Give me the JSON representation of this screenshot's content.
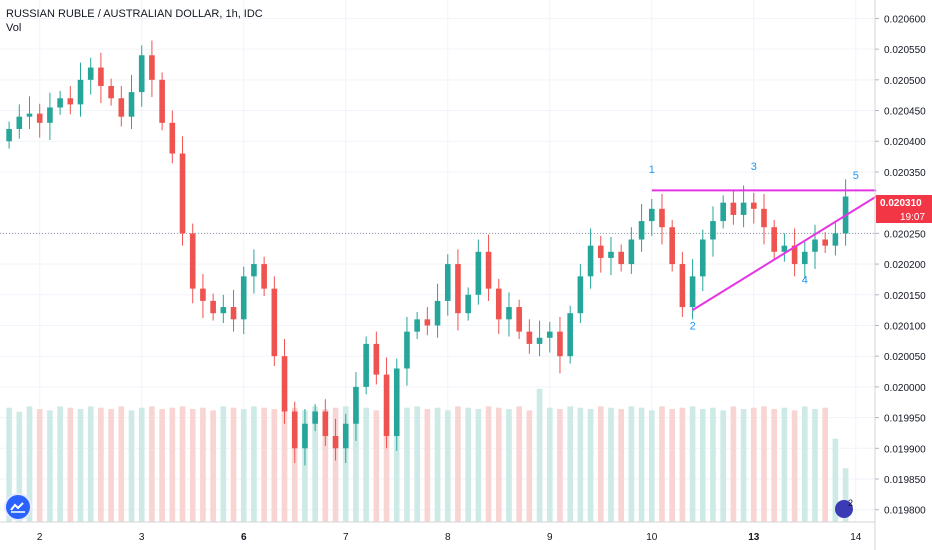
{
  "header": {
    "title": "RUSSIAN RUBLE / AUSTRALIAN DOLLAR, 1h, IDC",
    "indicator": "Vol"
  },
  "price_tag": {
    "value": "0.020310",
    "countdown": "19:07",
    "color": "#f23645"
  },
  "badge_count": "2",
  "colors": {
    "up": "#26a69a",
    "down": "#ef5350",
    "vol_up": "#cdeae6",
    "vol_down": "#f8d4d3",
    "trendline": "#e535e5",
    "labels": "#2196f3"
  },
  "chart_data": {
    "type": "candlestick",
    "title": "RUSSIAN RUBLE / AUSTRALIAN DOLLAR, 1h, IDC",
    "y_ticks": [
      "0.020600",
      "0.020550",
      "0.020500",
      "0.020450",
      "0.020400",
      "0.020350",
      "0.020250",
      "0.020200",
      "0.020150",
      "0.020100",
      "0.020050",
      "0.020000",
      "0.019950",
      "0.019900",
      "0.019850",
      "0.019800"
    ],
    "ylim": [
      0.01978,
      0.02063
    ],
    "x_ticks": [
      {
        "label": "2",
        "index": 3
      },
      {
        "label": "3",
        "index": 13
      },
      {
        "label": "6",
        "index": 23
      },
      {
        "label": "7",
        "index": 33
      },
      {
        "label": "8",
        "index": 43
      },
      {
        "label": "9",
        "index": 53
      },
      {
        "label": "10",
        "index": 63
      },
      {
        "label": "13",
        "index": 73
      },
      {
        "label": "14",
        "index": 83
      }
    ],
    "close_series": [
      0.02042,
      0.02044,
      0.020445,
      0.02043,
      0.020455,
      0.02047,
      0.02046,
      0.0205,
      0.02052,
      0.02049,
      0.02047,
      0.02044,
      0.02048,
      0.02054,
      0.0205,
      0.02043,
      0.02038,
      0.02025,
      0.02016,
      0.02014,
      0.02012,
      0.02013,
      0.02011,
      0.02018,
      0.0202,
      0.02016,
      0.02005,
      0.01996,
      0.0199,
      0.01994,
      0.01996,
      0.01992,
      0.0199,
      0.01994,
      0.02,
      0.02007,
      0.02002,
      0.01992,
      0.02003,
      0.02009,
      0.02011,
      0.0201,
      0.02014,
      0.0202,
      0.02012,
      0.02015,
      0.02022,
      0.02016,
      0.02011,
      0.02013,
      0.02009,
      0.02007,
      0.02008,
      0.02009,
      0.02005,
      0.02012,
      0.02018,
      0.02023,
      0.02021,
      0.02022,
      0.0202,
      0.02024,
      0.02027,
      0.02029,
      0.02026,
      0.0202,
      0.02013,
      0.02018,
      0.02024,
      0.02027,
      0.0203,
      0.02028,
      0.0203,
      0.02029,
      0.02026,
      0.02022,
      0.02023,
      0.0202,
      0.02022,
      0.02024,
      0.02023,
      0.02025,
      0.02031
    ],
    "volume_level": [
      0.85,
      0.82,
      0.86,
      0.84,
      0.83,
      0.86,
      0.85,
      0.84,
      0.86,
      0.85,
      0.84,
      0.86,
      0.83,
      0.85,
      0.86,
      0.84,
      0.85,
      0.86,
      0.84,
      0.85,
      0.83,
      0.86,
      0.85,
      0.84,
      0.86,
      0.85,
      0.84,
      0.86,
      0.85,
      0.83,
      0.86,
      0.84,
      0.85,
      0.86,
      0.84,
      0.85,
      0.83,
      0.86,
      0.84,
      0.85,
      0.86,
      0.84,
      0.85,
      0.83,
      0.86,
      0.85,
      0.84,
      0.86,
      0.85,
      0.84,
      0.86,
      0.83,
      0.99,
      0.85,
      0.84,
      0.86,
      0.85,
      0.84,
      0.86,
      0.85,
      0.84,
      0.86,
      0.85,
      0.83,
      0.86,
      0.84,
      0.85,
      0.86,
      0.84,
      0.85,
      0.83,
      0.86,
      0.84,
      0.85,
      0.86,
      0.84,
      0.85,
      0.83,
      0.86,
      0.84,
      0.85,
      0.62,
      0.4
    ],
    "horizontal_dotted_level": 0.02025,
    "trendlines": [
      {
        "from": {
          "index": 63,
          "value": 0.02032
        },
        "to": {
          "index": 85,
          "value": 0.02032
        }
      },
      {
        "from": {
          "index": 67,
          "value": 0.020125
        },
        "to": {
          "index": 85,
          "value": 0.02031
        }
      }
    ],
    "wave_labels": [
      {
        "label": "1",
        "index": 63,
        "value": 0.020355
      },
      {
        "label": "2",
        "index": 67,
        "value": 0.0201
      },
      {
        "label": "3",
        "index": 73,
        "value": 0.02036
      },
      {
        "label": "4",
        "index": 78,
        "value": 0.020175
      },
      {
        "label": "5",
        "index": 83,
        "value": 0.020345
      }
    ]
  }
}
